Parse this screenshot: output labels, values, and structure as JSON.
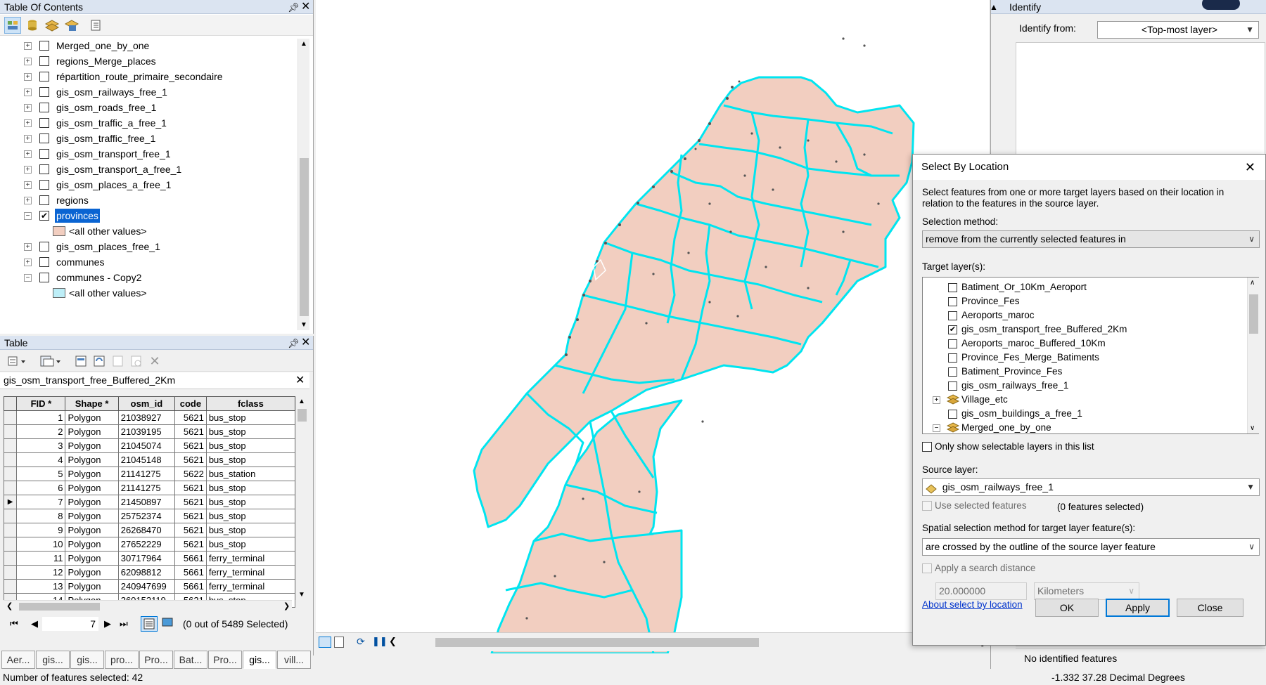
{
  "toc": {
    "title": "Table Of Contents",
    "layers": [
      {
        "name": "Merged_one_by_one",
        "checked": false,
        "expanded": false
      },
      {
        "name": "regions_Merge_places",
        "checked": false,
        "expanded": false
      },
      {
        "name": "répartition_route_primaire_secondaire",
        "checked": false,
        "expanded": false
      },
      {
        "name": "gis_osm_railways_free_1",
        "checked": false,
        "expanded": false
      },
      {
        "name": "gis_osm_roads_free_1",
        "checked": false,
        "expanded": false
      },
      {
        "name": "gis_osm_traffic_a_free_1",
        "checked": false,
        "expanded": false
      },
      {
        "name": "gis_osm_traffic_free_1",
        "checked": false,
        "expanded": false
      },
      {
        "name": "gis_osm_transport_free_1",
        "checked": false,
        "expanded": false
      },
      {
        "name": "gis_osm_transport_a_free_1",
        "checked": false,
        "expanded": false
      },
      {
        "name": "gis_osm_places_a_free_1",
        "checked": false,
        "expanded": false
      },
      {
        "name": "regions",
        "checked": false,
        "expanded": false
      },
      {
        "name": "provinces",
        "checked": true,
        "expanded": true
      },
      {
        "name": "gis_osm_places_free_1",
        "checked": false,
        "expanded": false
      },
      {
        "name": "communes",
        "checked": false,
        "expanded": false
      },
      {
        "name": "communes - Copy2",
        "checked": false,
        "expanded": true
      }
    ],
    "legend_all_other": "<all other values>",
    "legend_colors": {
      "provinces": "#f2cec0",
      "communes_copy2": "#bdeef7"
    }
  },
  "table": {
    "title": "Table",
    "layer_tab": "gis_osm_transport_free_Buffered_2Km",
    "columns": [
      "FID *",
      "Shape *",
      "osm_id",
      "code",
      "fclass"
    ],
    "rows": [
      [
        "1",
        "Polygon",
        "21038927",
        "5621",
        "bus_stop"
      ],
      [
        "2",
        "Polygon",
        "21039195",
        "5621",
        "bus_stop"
      ],
      [
        "3",
        "Polygon",
        "21045074",
        "5621",
        "bus_stop"
      ],
      [
        "4",
        "Polygon",
        "21045148",
        "5621",
        "bus_stop"
      ],
      [
        "5",
        "Polygon",
        "21141275",
        "5622",
        "bus_station"
      ],
      [
        "6",
        "Polygon",
        "21141275",
        "5621",
        "bus_stop"
      ],
      [
        "7",
        "Polygon",
        "21450897",
        "5621",
        "bus_stop"
      ],
      [
        "8",
        "Polygon",
        "25752374",
        "5621",
        "bus_stop"
      ],
      [
        "9",
        "Polygon",
        "26268470",
        "5621",
        "bus_stop"
      ],
      [
        "10",
        "Polygon",
        "27652229",
        "5621",
        "bus_stop"
      ],
      [
        "11",
        "Polygon",
        "30717964",
        "5661",
        "ferry_terminal"
      ],
      [
        "12",
        "Polygon",
        "62098812",
        "5661",
        "ferry_terminal"
      ],
      [
        "13",
        "Polygon",
        "240947699",
        "5661",
        "ferry_terminal"
      ],
      [
        "14",
        "Polygon",
        "260152119",
        "5621",
        "bus_stop"
      ]
    ],
    "current_record": "7",
    "selection_text": "(0 out of 5489 Selected)",
    "tabs": [
      "Aer...",
      "gis...",
      "gis...",
      "pro...",
      "Pro...",
      "Bat...",
      "Pro...",
      "gis...",
      "vill..."
    ],
    "active_tab": 7
  },
  "identify": {
    "title": "Identify",
    "from_label": "Identify from:",
    "from_value": "<Top-most layer>",
    "status": "No identified features",
    "coords": "-1.332  37.28 Decimal Degrees"
  },
  "dialog": {
    "title": "Select By Location",
    "description_line1": "Select features from one or more target layers based on their location in",
    "description_line2": "relation to the features in the source layer.",
    "selection_method_label": "Selection method:",
    "selection_method_value": "remove from the currently selected features in",
    "target_label": "Target layer(s):",
    "targets": [
      {
        "name": "Batiment_Or_10Km_Aeroport",
        "checked": false,
        "group": false
      },
      {
        "name": "Province_Fes",
        "checked": false,
        "group": false
      },
      {
        "name": "Aeroports_maroc",
        "checked": false,
        "group": false
      },
      {
        "name": "gis_osm_transport_free_Buffered_2Km",
        "checked": true,
        "group": false
      },
      {
        "name": "Aeroports_maroc_Buffered_10Km",
        "checked": false,
        "group": false
      },
      {
        "name": "Province_Fes_Merge_Batiments",
        "checked": false,
        "group": false
      },
      {
        "name": "Batiment_Province_Fes",
        "checked": false,
        "group": false
      },
      {
        "name": "gis_osm_railways_free_1",
        "checked": false,
        "group": false
      },
      {
        "name": "Village_etc",
        "checked": false,
        "group": true,
        "expanded": false
      },
      {
        "name": "gis_osm_buildings_a_free_1",
        "checked": false,
        "group": false
      },
      {
        "name": "Merged_one_by_one",
        "checked": false,
        "group": true,
        "expanded": true
      }
    ],
    "only_selectable_label": "Only show selectable layers in this list",
    "source_label": "Source layer:",
    "source_value": "gis_osm_railways_free_1",
    "use_selected_label": "Use selected features",
    "features_selected": "(0 features selected)",
    "spatial_label": "Spatial selection method for target layer feature(s):",
    "spatial_value": "are crossed by the outline of the source layer feature",
    "search_distance_label": "Apply a search distance",
    "distance_value": "20.000000",
    "distance_unit": "Kilometers",
    "about_link": "About select by location",
    "ok": "OK",
    "apply": "Apply",
    "close": "Close"
  },
  "status": {
    "selected_count": "Number of features selected: 42"
  }
}
